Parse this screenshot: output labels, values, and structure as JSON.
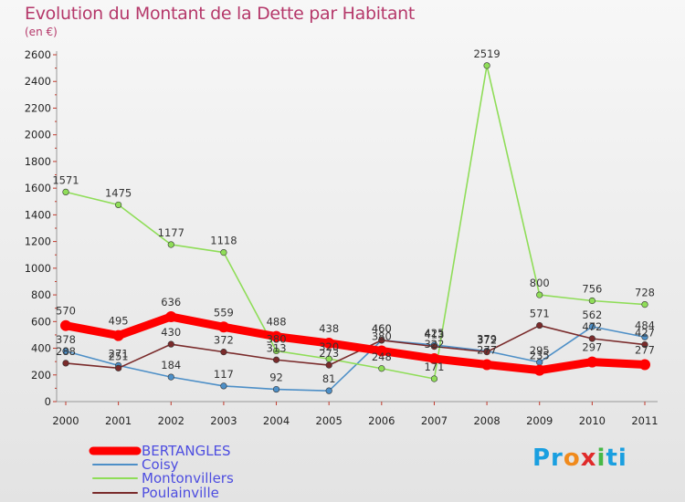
{
  "title": "Evolution du Montant de la Dette par Habitant",
  "unit_label": "(en €)",
  "logo": {
    "parts": [
      "Pr",
      "o",
      "x",
      "i",
      "ti"
    ],
    "colors": [
      "#1a9fe0",
      "#f08a1c",
      "#e02a2a",
      "#46b846",
      "#1a9fe0"
    ]
  },
  "chart_data": {
    "type": "line",
    "x": [
      "2000",
      "2001",
      "2002",
      "2003",
      "2004",
      "2005",
      "2006",
      "2007",
      "2008",
      "2009",
      "2010",
      "2011"
    ],
    "ylim": [
      0,
      2600
    ],
    "yticks": [
      "0",
      "200",
      "400",
      "600",
      "800",
      "1000",
      "1200",
      "1400",
      "1600",
      "1800",
      "2000",
      "2200",
      "2400",
      "2600"
    ],
    "grid": false,
    "legend_position": "bottom-left",
    "series": [
      {
        "name": "BERTANGLES",
        "color": "#ff0000",
        "values": [
          570,
          495,
          636,
          559,
          488,
          438,
          380,
          322,
          277,
          235,
          297,
          277
        ]
      },
      {
        "name": "Coisy",
        "color": "#4d8fc7",
        "values": [
          378,
          271,
          184,
          117,
          92,
          81,
          460,
          425,
          379,
          295,
          562,
          484
        ]
      },
      {
        "name": "Montonvillers",
        "color": "#8fdd58",
        "values": [
          1571,
          1475,
          1177,
          1118,
          380,
          320,
          248,
          171,
          2519,
          800,
          756,
          728
        ]
      },
      {
        "name": "Poulainville",
        "color": "#7a2b2b",
        "values": [
          288,
          251,
          430,
          372,
          313,
          273,
          460,
          413,
          372,
          571,
          472,
          427
        ]
      }
    ]
  }
}
